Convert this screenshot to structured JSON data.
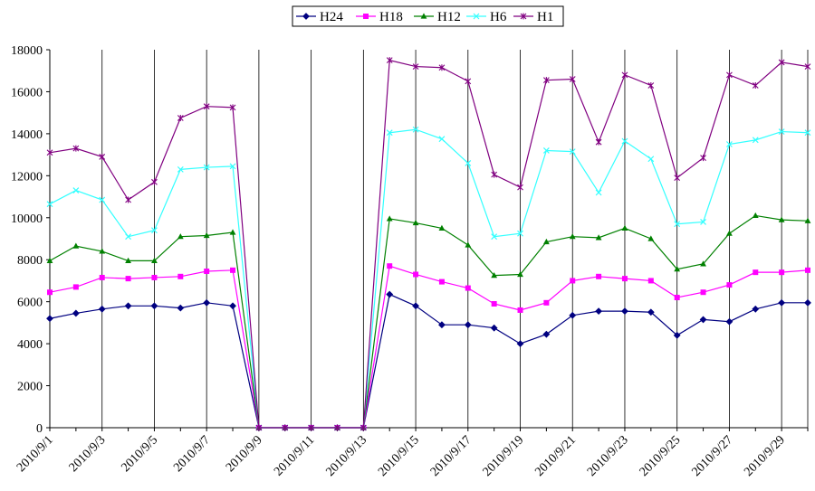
{
  "chart_data": {
    "type": "line",
    "title": "",
    "xlabel": "",
    "ylabel": "",
    "ylim": [
      0,
      18000
    ],
    "yticks": [
      0,
      2000,
      4000,
      6000,
      8000,
      10000,
      12000,
      14000,
      16000,
      18000
    ],
    "grid": "vertical lines",
    "legend_position": "top-center",
    "x": [
      "2010/9/1",
      "2010/9/2",
      "2010/9/3",
      "2010/9/4",
      "2010/9/5",
      "2010/9/6",
      "2010/9/7",
      "2010/9/8",
      "2010/9/9",
      "2010/9/10",
      "2010/9/11",
      "2010/9/12",
      "2010/9/13",
      "2010/9/14",
      "2010/9/15",
      "2010/9/16",
      "2010/9/17",
      "2010/9/18",
      "2010/9/19",
      "2010/9/20",
      "2010/9/21",
      "2010/9/22",
      "2010/9/23",
      "2010/9/24",
      "2010/9/25",
      "2010/9/26",
      "2010/9/27",
      "2010/9/28",
      "2010/9/29",
      "2010/9/30"
    ],
    "xtick_labels": [
      "2010/9/1",
      "2010/9/3",
      "2010/9/5",
      "2010/9/7",
      "2010/9/9",
      "2010/9/11",
      "2010/9/13",
      "2010/9/15",
      "2010/9/17",
      "2010/9/19",
      "2010/9/21",
      "2010/9/23",
      "2010/9/25",
      "2010/9/27",
      "2010/9/29"
    ],
    "series": [
      {
        "name": "H24",
        "color": "#000080",
        "marker": "diamond",
        "values": [
          5200,
          5450,
          5650,
          5800,
          5800,
          5700,
          5950,
          5800,
          0,
          0,
          0,
          0,
          0,
          6350,
          5800,
          4900,
          4900,
          4750,
          4000,
          4450,
          5350,
          5550,
          5550,
          5500,
          4400,
          5150,
          5050,
          5650,
          5950,
          5950
        ]
      },
      {
        "name": "H18",
        "color": "#FF00FF",
        "marker": "square",
        "values": [
          6450,
          6700,
          7150,
          7100,
          7150,
          7200,
          7450,
          7500,
          0,
          0,
          0,
          0,
          0,
          7700,
          7300,
          6950,
          6650,
          5900,
          5600,
          5950,
          7000,
          7200,
          7100,
          7000,
          6200,
          6450,
          6800,
          7400,
          7400,
          7500
        ]
      },
      {
        "name": "H12",
        "color": "#008000",
        "marker": "triangle",
        "values": [
          7950,
          8650,
          8400,
          7950,
          7950,
          9100,
          9150,
          9300,
          0,
          0,
          0,
          0,
          0,
          9950,
          9750,
          9500,
          8700,
          7250,
          7300,
          8850,
          9100,
          9050,
          9500,
          9000,
          7550,
          7800,
          9250,
          10100,
          9900,
          9850
        ]
      },
      {
        "name": "H6",
        "color": "#33FFFF",
        "marker": "x",
        "values": [
          10650,
          11300,
          10850,
          9100,
          9400,
          12300,
          12400,
          12450,
          0,
          0,
          0,
          0,
          0,
          14050,
          14200,
          13750,
          12600,
          9100,
          9250,
          13200,
          13150,
          11200,
          13650,
          12800,
          9700,
          9800,
          13500,
          13700,
          14100,
          14050
        ]
      },
      {
        "name": "H1",
        "color": "#800080",
        "marker": "star",
        "values": [
          13100,
          13300,
          12900,
          10850,
          11700,
          14750,
          15300,
          15250,
          0,
          0,
          0,
          0,
          0,
          17500,
          17200,
          17150,
          16500,
          12050,
          11450,
          16550,
          16600,
          13600,
          16800,
          16300,
          11900,
          12850,
          16800,
          16300,
          17400,
          17200
        ]
      }
    ]
  }
}
